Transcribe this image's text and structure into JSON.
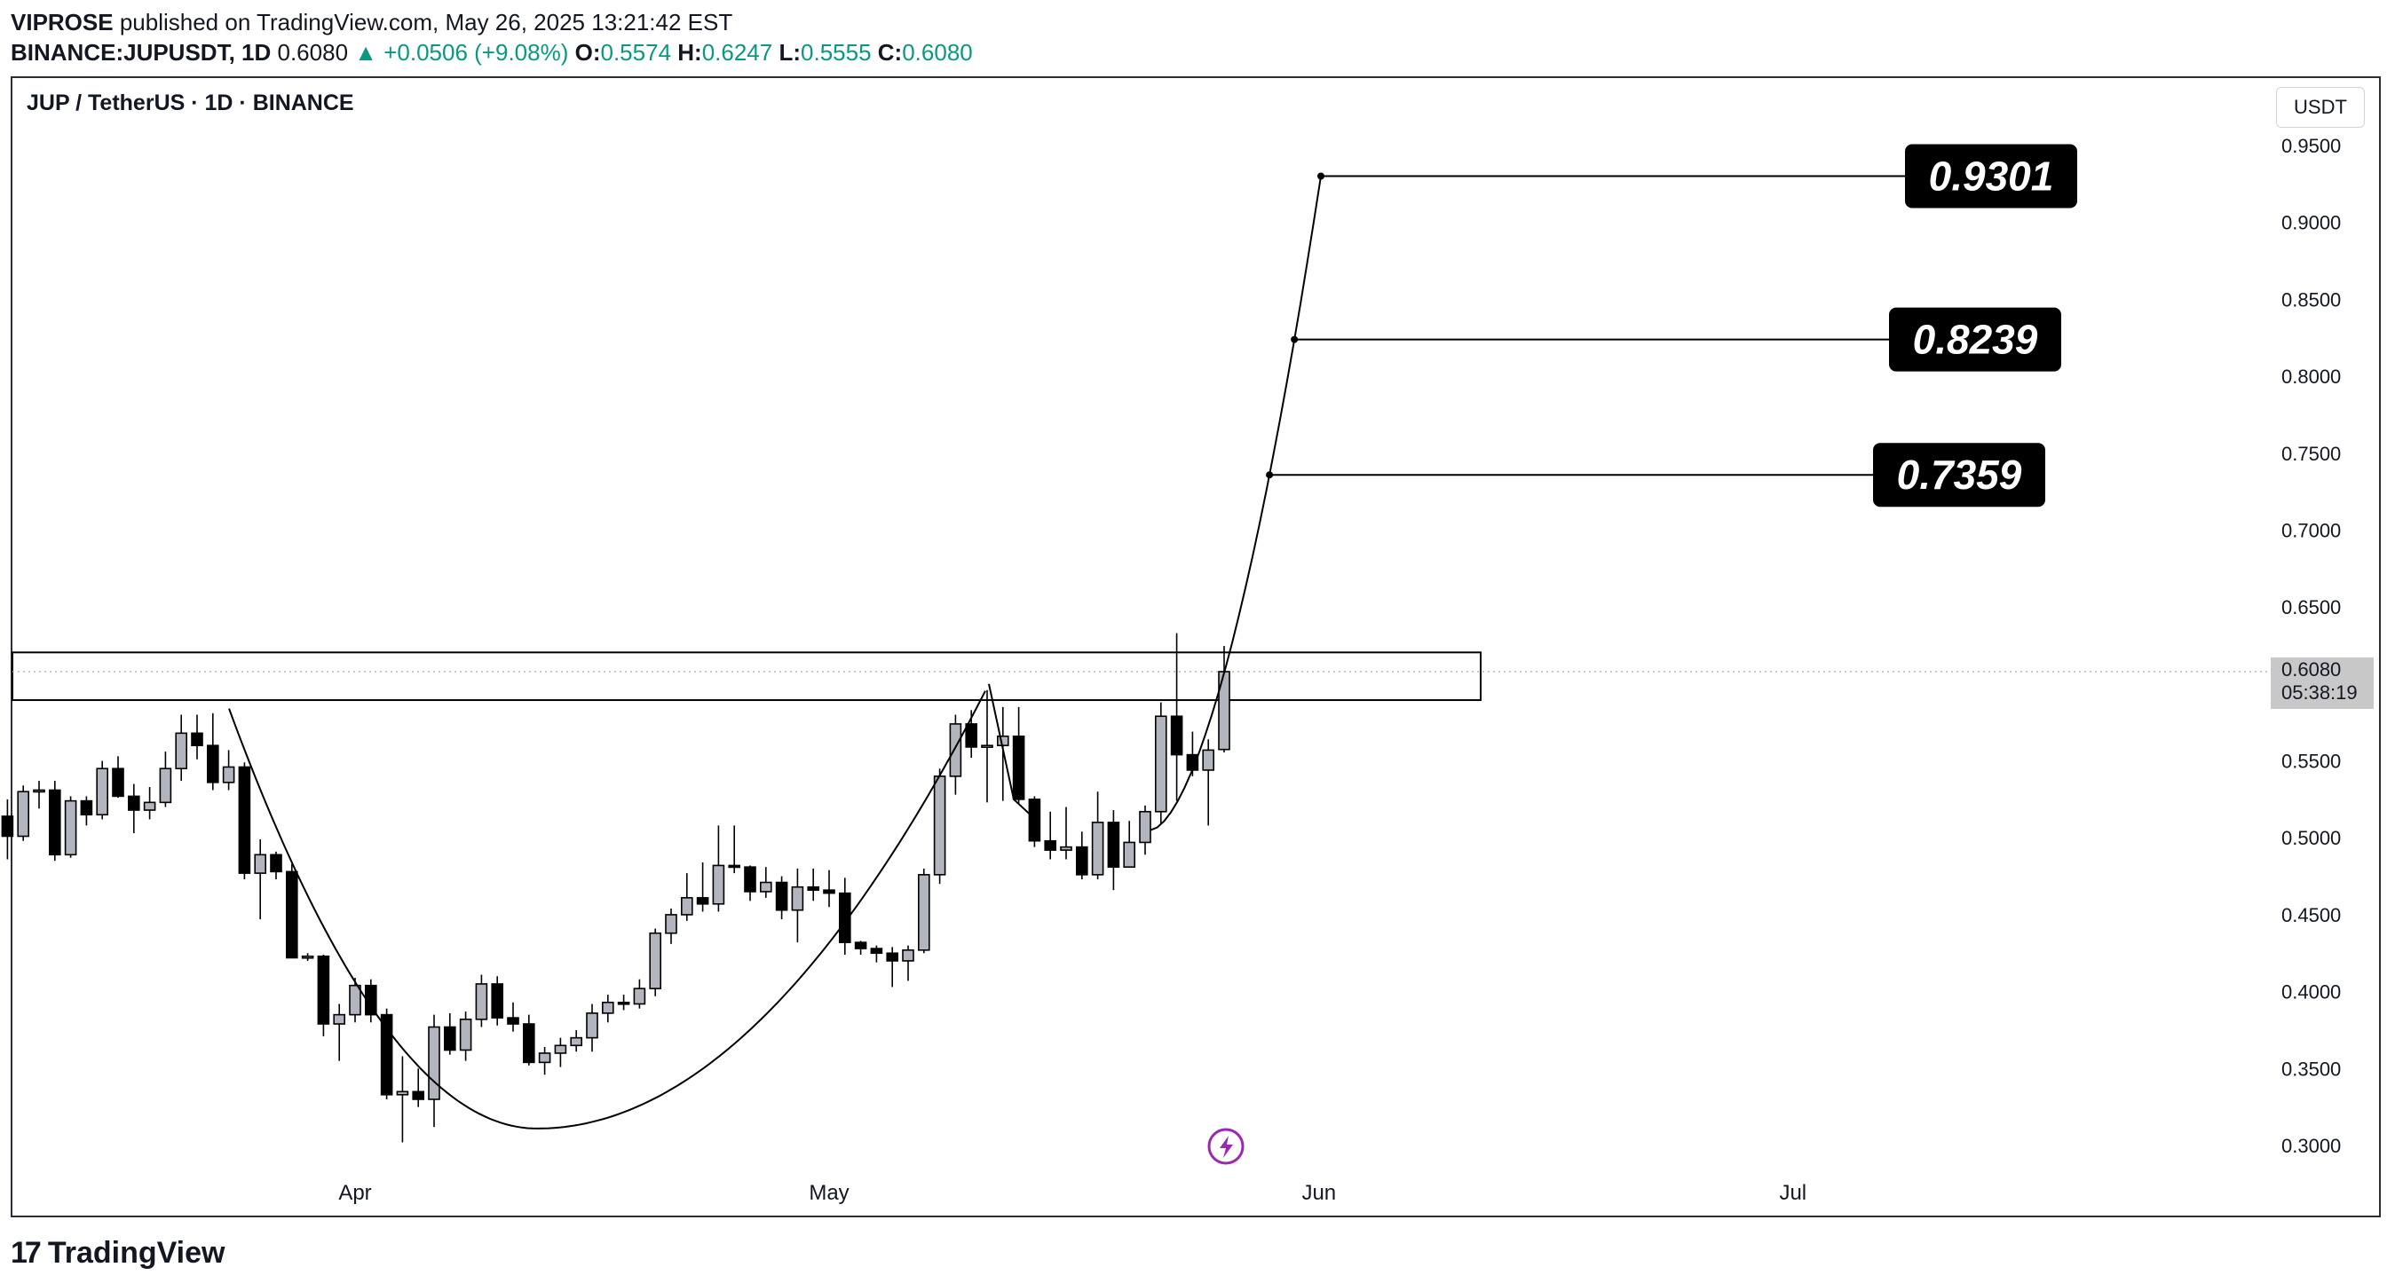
{
  "header": {
    "author": "VIPROSE",
    "published_text": "published on TradingView.com, May 26, 2025 13:21:42 EST",
    "symbol": "BINANCE:JUPUSDT, 1D",
    "last_price": "0.6080",
    "change_text": "▲ +0.0506 (+9.08%)",
    "open_label": "O:",
    "open_value": "0.5574",
    "high_label": "H:",
    "high_value": "0.6247",
    "low_label": "L:",
    "low_value": "0.5555",
    "close_label": "C:",
    "close_value": "0.6080"
  },
  "chart_title": "JUP / TetherUS · 1D · BINANCE",
  "currency": "USDT",
  "footer": {
    "logo_mark": "17",
    "logo_text": "TradingView"
  },
  "colors": {
    "accent": "#089981",
    "candle_up_fill": "#b2b5be",
    "candle_down_fill": "#000000",
    "price_badge": "#c8c8c8",
    "flash_icon": "#9c27b0"
  },
  "chart_data": {
    "type": "candlestick",
    "title": "JUP / TetherUS · 1D · BINANCE",
    "ylim": [
      0.27,
      0.995
    ],
    "y_ticks": [
      "0.9500",
      "0.9000",
      "0.8500",
      "0.8000",
      "0.7500",
      "0.7000",
      "0.6500",
      "0.5500",
      "0.5000",
      "0.4500",
      "0.4000",
      "0.3500",
      "0.3000"
    ],
    "x_ticks": [
      {
        "label": "Apr",
        "date": "2025-04-01"
      },
      {
        "label": "May",
        "date": "2025-05-01"
      },
      {
        "label": "Jun",
        "date": "2025-06-01"
      },
      {
        "label": "Jul",
        "date": "2025-07-01"
      }
    ],
    "current_price": {
      "value": 0.608,
      "label": "0.6080",
      "countdown": "05:38:19"
    },
    "resistance_zone": [
      0.5895,
      0.6205
    ],
    "targets": [
      {
        "label": "0.7359",
        "value": 0.7359
      },
      {
        "label": "0.8239",
        "value": 0.8239
      },
      {
        "label": "0.9301",
        "value": 0.9301
      }
    ],
    "candles": [
      {
        "date": "2025-03-08",
        "o": 0.481,
        "h": 0.527,
        "l": 0.446,
        "c": 0.514
      },
      {
        "date": "2025-03-09",
        "o": 0.514,
        "h": 0.523,
        "l": 0.486,
        "c": 0.514
      },
      {
        "date": "2025-03-10",
        "o": 0.514,
        "h": 0.525,
        "l": 0.486,
        "c": 0.501
      },
      {
        "date": "2025-03-11",
        "o": 0.501,
        "h": 0.534,
        "l": 0.498,
        "c": 0.53
      },
      {
        "date": "2025-03-12",
        "o": 0.53,
        "h": 0.537,
        "l": 0.519,
        "c": 0.531
      },
      {
        "date": "2025-03-13",
        "o": 0.531,
        "h": 0.537,
        "l": 0.485,
        "c": 0.489
      },
      {
        "date": "2025-03-14",
        "o": 0.489,
        "h": 0.527,
        "l": 0.487,
        "c": 0.524
      },
      {
        "date": "2025-03-15",
        "o": 0.524,
        "h": 0.527,
        "l": 0.508,
        "c": 0.515
      },
      {
        "date": "2025-03-16",
        "o": 0.515,
        "h": 0.55,
        "l": 0.512,
        "c": 0.545
      },
      {
        "date": "2025-03-17",
        "o": 0.545,
        "h": 0.553,
        "l": 0.526,
        "c": 0.527
      },
      {
        "date": "2025-03-18",
        "o": 0.527,
        "h": 0.535,
        "l": 0.503,
        "c": 0.518
      },
      {
        "date": "2025-03-19",
        "o": 0.518,
        "h": 0.533,
        "l": 0.512,
        "c": 0.523
      },
      {
        "date": "2025-03-20",
        "o": 0.523,
        "h": 0.556,
        "l": 0.52,
        "c": 0.545
      },
      {
        "date": "2025-03-21",
        "o": 0.545,
        "h": 0.58,
        "l": 0.537,
        "c": 0.568
      },
      {
        "date": "2025-03-22",
        "o": 0.568,
        "h": 0.58,
        "l": 0.551,
        "c": 0.56
      },
      {
        "date": "2025-03-23",
        "o": 0.56,
        "h": 0.581,
        "l": 0.531,
        "c": 0.536
      },
      {
        "date": "2025-03-24",
        "o": 0.536,
        "h": 0.557,
        "l": 0.531,
        "c": 0.546
      },
      {
        "date": "2025-03-25",
        "o": 0.546,
        "h": 0.549,
        "l": 0.473,
        "c": 0.477
      },
      {
        "date": "2025-03-26",
        "o": 0.477,
        "h": 0.499,
        "l": 0.447,
        "c": 0.489
      },
      {
        "date": "2025-03-27",
        "o": 0.489,
        "h": 0.491,
        "l": 0.473,
        "c": 0.478
      },
      {
        "date": "2025-03-28",
        "o": 0.478,
        "h": 0.483,
        "l": 0.423,
        "c": 0.422
      },
      {
        "date": "2025-03-29",
        "o": 0.422,
        "h": 0.425,
        "l": 0.42,
        "c": 0.423
      },
      {
        "date": "2025-03-30",
        "o": 0.423,
        "h": 0.424,
        "l": 0.371,
        "c": 0.379
      },
      {
        "date": "2025-03-31",
        "o": 0.379,
        "h": 0.392,
        "l": 0.355,
        "c": 0.385
      },
      {
        "date": "2025-04-01",
        "o": 0.385,
        "h": 0.409,
        "l": 0.38,
        "c": 0.404
      },
      {
        "date": "2025-04-02",
        "o": 0.404,
        "h": 0.408,
        "l": 0.38,
        "c": 0.385
      },
      {
        "date": "2025-04-03",
        "o": 0.385,
        "h": 0.389,
        "l": 0.33,
        "c": 0.333
      },
      {
        "date": "2025-04-04",
        "o": 0.333,
        "h": 0.358,
        "l": 0.302,
        "c": 0.335
      },
      {
        "date": "2025-04-05",
        "o": 0.335,
        "h": 0.35,
        "l": 0.325,
        "c": 0.33
      },
      {
        "date": "2025-04-06",
        "o": 0.33,
        "h": 0.385,
        "l": 0.312,
        "c": 0.377
      },
      {
        "date": "2025-04-07",
        "o": 0.377,
        "h": 0.386,
        "l": 0.359,
        "c": 0.362
      },
      {
        "date": "2025-04-08",
        "o": 0.362,
        "h": 0.387,
        "l": 0.355,
        "c": 0.382
      },
      {
        "date": "2025-04-09",
        "o": 0.382,
        "h": 0.411,
        "l": 0.377,
        "c": 0.405
      },
      {
        "date": "2025-04-10",
        "o": 0.405,
        "h": 0.41,
        "l": 0.378,
        "c": 0.383
      },
      {
        "date": "2025-04-11",
        "o": 0.383,
        "h": 0.393,
        "l": 0.374,
        "c": 0.379
      },
      {
        "date": "2025-04-12",
        "o": 0.379,
        "h": 0.385,
        "l": 0.352,
        "c": 0.354
      },
      {
        "date": "2025-04-13",
        "o": 0.354,
        "h": 0.364,
        "l": 0.346,
        "c": 0.36
      },
      {
        "date": "2025-04-14",
        "o": 0.36,
        "h": 0.37,
        "l": 0.351,
        "c": 0.365
      },
      {
        "date": "2025-04-15",
        "o": 0.365,
        "h": 0.375,
        "l": 0.361,
        "c": 0.37
      },
      {
        "date": "2025-04-16",
        "o": 0.37,
        "h": 0.392,
        "l": 0.361,
        "c": 0.386
      },
      {
        "date": "2025-04-17",
        "o": 0.386,
        "h": 0.398,
        "l": 0.38,
        "c": 0.393
      },
      {
        "date": "2025-04-18",
        "o": 0.393,
        "h": 0.398,
        "l": 0.388,
        "c": 0.392
      },
      {
        "date": "2025-04-19",
        "o": 0.392,
        "h": 0.408,
        "l": 0.389,
        "c": 0.402
      },
      {
        "date": "2025-04-20",
        "o": 0.402,
        "h": 0.441,
        "l": 0.397,
        "c": 0.438
      },
      {
        "date": "2025-04-21",
        "o": 0.438,
        "h": 0.454,
        "l": 0.431,
        "c": 0.45
      },
      {
        "date": "2025-04-22",
        "o": 0.45,
        "h": 0.477,
        "l": 0.446,
        "c": 0.461
      },
      {
        "date": "2025-04-23",
        "o": 0.461,
        "h": 0.484,
        "l": 0.452,
        "c": 0.457
      },
      {
        "date": "2025-04-24",
        "o": 0.457,
        "h": 0.508,
        "l": 0.452,
        "c": 0.482
      },
      {
        "date": "2025-04-25",
        "o": 0.482,
        "h": 0.508,
        "l": 0.477,
        "c": 0.481
      },
      {
        "date": "2025-04-26",
        "o": 0.481,
        "h": 0.482,
        "l": 0.459,
        "c": 0.465
      },
      {
        "date": "2025-04-27",
        "o": 0.465,
        "h": 0.481,
        "l": 0.461,
        "c": 0.471
      },
      {
        "date": "2025-04-28",
        "o": 0.471,
        "h": 0.475,
        "l": 0.447,
        "c": 0.453
      },
      {
        "date": "2025-04-29",
        "o": 0.453,
        "h": 0.48,
        "l": 0.432,
        "c": 0.468
      },
      {
        "date": "2025-04-30",
        "o": 0.468,
        "h": 0.48,
        "l": 0.459,
        "c": 0.466
      },
      {
        "date": "2025-05-01",
        "o": 0.466,
        "h": 0.479,
        "l": 0.455,
        "c": 0.464
      },
      {
        "date": "2025-05-02",
        "o": 0.464,
        "h": 0.474,
        "l": 0.424,
        "c": 0.432
      },
      {
        "date": "2025-05-03",
        "o": 0.432,
        "h": 0.433,
        "l": 0.424,
        "c": 0.428
      },
      {
        "date": "2025-05-04",
        "o": 0.428,
        "h": 0.43,
        "l": 0.419,
        "c": 0.425
      },
      {
        "date": "2025-05-05",
        "o": 0.425,
        "h": 0.429,
        "l": 0.403,
        "c": 0.42
      },
      {
        "date": "2025-05-06",
        "o": 0.42,
        "h": 0.43,
        "l": 0.407,
        "c": 0.427
      },
      {
        "date": "2025-05-07",
        "o": 0.427,
        "h": 0.48,
        "l": 0.425,
        "c": 0.476
      },
      {
        "date": "2025-05-08",
        "o": 0.476,
        "h": 0.545,
        "l": 0.47,
        "c": 0.54
      },
      {
        "date": "2025-05-09",
        "o": 0.54,
        "h": 0.58,
        "l": 0.528,
        "c": 0.574
      },
      {
        "date": "2025-05-10",
        "o": 0.574,
        "h": 0.583,
        "l": 0.552,
        "c": 0.559
      },
      {
        "date": "2025-05-11",
        "o": 0.559,
        "h": 0.596,
        "l": 0.523,
        "c": 0.56
      },
      {
        "date": "2025-05-12",
        "o": 0.56,
        "h": 0.585,
        "l": 0.524,
        "c": 0.566
      },
      {
        "date": "2025-05-13",
        "o": 0.566,
        "h": 0.585,
        "l": 0.522,
        "c": 0.525
      },
      {
        "date": "2025-05-14",
        "o": 0.525,
        "h": 0.527,
        "l": 0.494,
        "c": 0.498
      },
      {
        "date": "2025-05-15",
        "o": 0.498,
        "h": 0.517,
        "l": 0.486,
        "c": 0.492
      },
      {
        "date": "2025-05-16",
        "o": 0.492,
        "h": 0.52,
        "l": 0.486,
        "c": 0.494
      },
      {
        "date": "2025-05-17",
        "o": 0.494,
        "h": 0.504,
        "l": 0.473,
        "c": 0.476
      },
      {
        "date": "2025-05-18",
        "o": 0.476,
        "h": 0.53,
        "l": 0.473,
        "c": 0.51
      },
      {
        "date": "2025-05-19",
        "o": 0.51,
        "h": 0.518,
        "l": 0.466,
        "c": 0.481
      },
      {
        "date": "2025-05-20",
        "o": 0.481,
        "h": 0.511,
        "l": 0.481,
        "c": 0.497
      },
      {
        "date": "2025-05-21",
        "o": 0.497,
        "h": 0.521,
        "l": 0.489,
        "c": 0.517
      },
      {
        "date": "2025-05-22",
        "o": 0.517,
        "h": 0.588,
        "l": 0.509,
        "c": 0.579
      },
      {
        "date": "2025-05-23",
        "o": 0.579,
        "h": 0.633,
        "l": 0.524,
        "c": 0.554
      },
      {
        "date": "2025-05-24",
        "o": 0.554,
        "h": 0.569,
        "l": 0.54,
        "c": 0.544
      },
      {
        "date": "2025-05-25",
        "o": 0.544,
        "h": 0.564,
        "l": 0.508,
        "c": 0.557
      },
      {
        "date": "2025-05-26",
        "o": 0.5574,
        "h": 0.6247,
        "l": 0.5555,
        "c": 0.608
      }
    ]
  }
}
